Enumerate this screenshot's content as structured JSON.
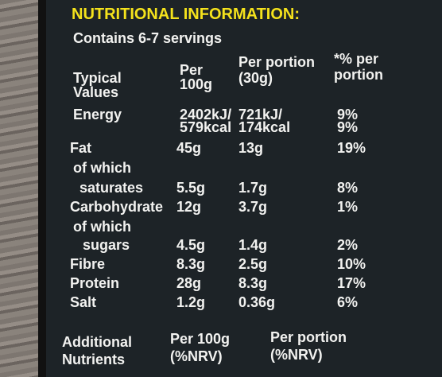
{
  "header": {
    "title": "NUTRITIONAL INFORMATION:",
    "subtitle": "Contains 6-7 servings"
  },
  "table": {
    "columns": {
      "label": "Typical Values",
      "per_100g": "Per 100g",
      "per_portion": "Per portion (30g)",
      "percent": "*% per portion"
    },
    "rows": [
      {
        "label": "Energy",
        "per_100g": "2402kJ/",
        "per_portion": "721kJ/",
        "percent": "9%"
      },
      {
        "per_100g": "579kcal",
        "per_portion": "174kcal",
        "percent": "9%"
      },
      {
        "label": "Fat",
        "per_100g": "45g",
        "per_portion": "13g",
        "percent": "19%"
      },
      {
        "label": "of which"
      },
      {
        "label": "saturates",
        "per_100g": "5.5g",
        "per_portion": "1.7g",
        "percent": "8%"
      },
      {
        "label": "Carbohydrate",
        "per_100g": "12g",
        "per_portion": "3.7g",
        "percent": "1%"
      },
      {
        "label": "of which"
      },
      {
        "label": "sugars",
        "per_100g": "4.5g",
        "per_portion": "1.4g",
        "percent": "2%"
      },
      {
        "label": "Fibre",
        "per_100g": "8.3g",
        "per_portion": "2.5g",
        "percent": "10%"
      },
      {
        "label": "Protein",
        "per_100g": "28g",
        "per_portion": "8.3g",
        "percent": "17%"
      },
      {
        "label": "Salt",
        "per_100g": "1.2g",
        "per_portion": "0.36g",
        "percent": "6%"
      }
    ]
  },
  "additional": {
    "label": "Additional Nutrients",
    "per_100g": "Per 100g (%NRV)",
    "per_portion": "Per portion (%NRV)"
  }
}
